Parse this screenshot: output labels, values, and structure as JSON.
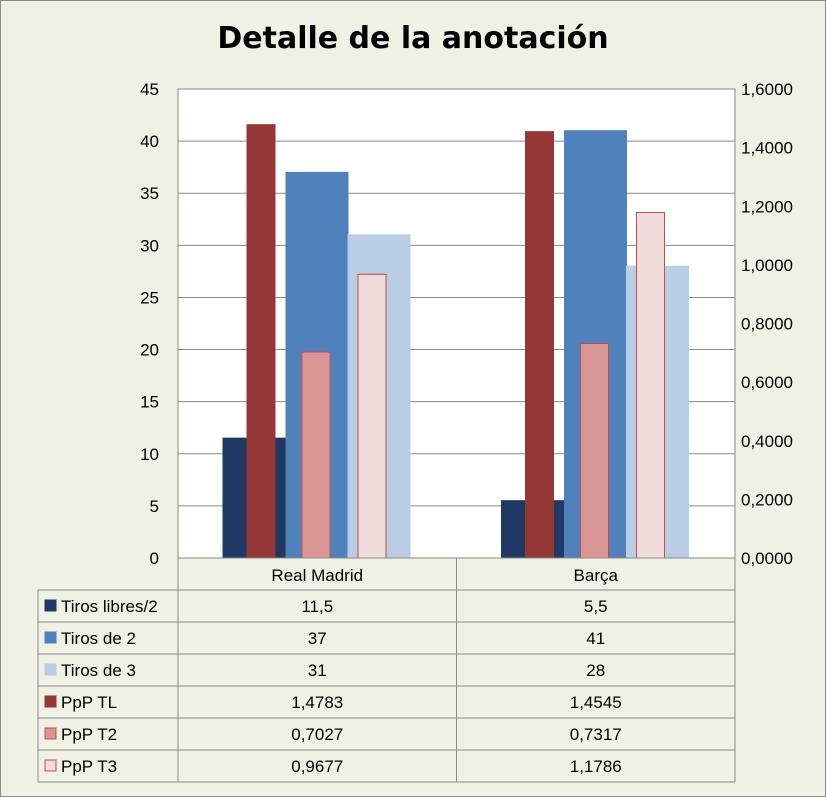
{
  "chart_data": {
    "type": "bar",
    "title": "Detalle de la anotación",
    "categories": [
      "Real Madrid",
      "Barça"
    ],
    "y_left": {
      "ylim": [
        0,
        45
      ],
      "ticks": [
        "0",
        "5",
        "10",
        "15",
        "20",
        "25",
        "30",
        "35",
        "40",
        "45"
      ]
    },
    "y_right": {
      "ylim": [
        0,
        1.6
      ],
      "ticks": [
        "0,0000",
        "0,2000",
        "0,4000",
        "0,6000",
        "0,8000",
        "1,0000",
        "1,2000",
        "1,4000",
        "1,6000"
      ]
    },
    "grid": true,
    "legend_placement": "data-table",
    "series": [
      {
        "name": "Tiros libres/2",
        "axis": "left",
        "values": [
          11.5,
          5.5
        ],
        "labels": [
          "11,5",
          "5,5"
        ],
        "color": "#1f3864",
        "border": "#1f3864"
      },
      {
        "name": "Tiros de 2",
        "axis": "left",
        "values": [
          37,
          41
        ],
        "labels": [
          "37",
          "41"
        ],
        "color": "#4f81bd",
        "border": "#4f81bd"
      },
      {
        "name": "Tiros de 3",
        "axis": "left",
        "values": [
          31,
          28
        ],
        "labels": [
          "31",
          "28"
        ],
        "color": "#b9cde5",
        "border": "#b9cde5"
      },
      {
        "name": "PpP TL",
        "axis": "right",
        "values": [
          1.4783,
          1.4545
        ],
        "labels": [
          "1,4783",
          "1,4545"
        ],
        "color": "#953735",
        "border": "#953735"
      },
      {
        "name": "PpP T2",
        "axis": "right",
        "values": [
          0.7027,
          0.7317
        ],
        "labels": [
          "0,7027",
          "0,7317"
        ],
        "color": "#d99694",
        "border": "#c0504d"
      },
      {
        "name": "PpP T3",
        "axis": "right",
        "values": [
          0.9677,
          1.1786
        ],
        "labels": [
          "0,9677",
          "1,1786"
        ],
        "color": "#f2dcdb",
        "border": "#c0504d"
      }
    ]
  }
}
